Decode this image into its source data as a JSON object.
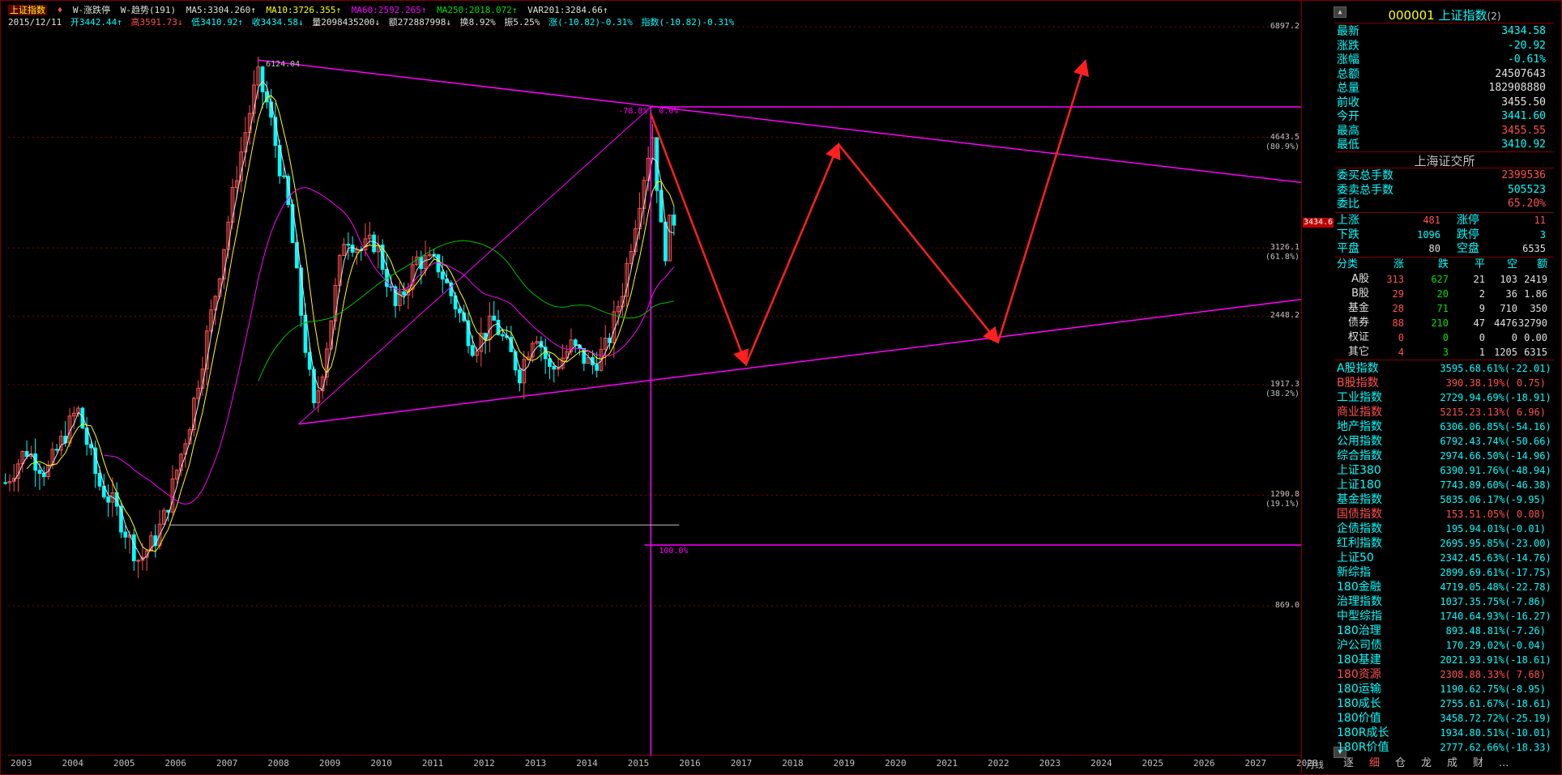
{
  "header": {
    "symbol": "上证指数",
    "arrow": "♦",
    "formula1": "W-涨跌停",
    "formula2": "W-趋势(191)",
    "ma5": "MA5:3304.260↑",
    "ma10": "MA10:3726.355↑",
    "ma60": "MA60:2592.265↑",
    "ma250": "MA250:2018.072↑",
    "var": "VAR201:3284.66↑"
  },
  "bar_info": {
    "date": "2015/12/11",
    "open": "开3442.44↑",
    "high": "高3591.73↓",
    "low": "低3410.92↑",
    "close": "收3434.58↓",
    "volume": "量2098435200↓",
    "amount": "额272887998↓",
    "turnover": "换8.92%",
    "amplitude": "振5.25%",
    "change": "涨(-10.82)-0.31%",
    "index": "指数(-10.82)-0.31%"
  },
  "y_axis": [
    {
      "label": "6897.2",
      "pct": ""
    },
    {
      "label": "4643.5",
      "pct": "(80.9%)"
    },
    {
      "label": "3126.1",
      "pct": "(61.8%)"
    },
    {
      "label": "2448.2",
      "pct": ""
    },
    {
      "label": "1917.3",
      "pct": "(38.2%)"
    },
    {
      "label": "1290.8",
      "pct": "(19.1%)"
    },
    {
      "label": "869.0",
      "pct": ""
    }
  ],
  "current_price_tag": "3434.6",
  "annotations": {
    "peak_2007": "6124.04",
    "fib_low": "-78.8%",
    "fib_high": "0.0%",
    "fib_100": "100.0%"
  },
  "x_axis": [
    "2003",
    "2004",
    "2005",
    "2006",
    "2007",
    "2008",
    "2009",
    "2010",
    "2011",
    "2012",
    "2013",
    "2014",
    "2015",
    "2016",
    "2017",
    "2018",
    "2019",
    "2020",
    "2021",
    "2022",
    "2023",
    "2024",
    "2025",
    "2026",
    "2027",
    "2028"
  ],
  "period_label": "月线",
  "panel": {
    "code": "000001",
    "name": "上证指数",
    "num": "(2)",
    "quotes": [
      {
        "k": "最新",
        "v": "3434.58",
        "color": "#00ffff"
      },
      {
        "k": "涨跌",
        "v": "-20.92",
        "color": "#00ffff"
      },
      {
        "k": "涨幅",
        "v": "-0.61%",
        "color": "#00ffff"
      },
      {
        "k": "总额",
        "v": "24507643",
        "color": "#e0e0e0"
      },
      {
        "k": "总量",
        "v": "182908880",
        "color": "#e0e0e0"
      },
      {
        "k": "前收",
        "v": "3455.50",
        "color": "#e0e0e0"
      },
      {
        "k": "今开",
        "v": "3441.60",
        "color": "#00ffff"
      },
      {
        "k": "最高",
        "v": "3455.55",
        "color": "#ff5050"
      },
      {
        "k": "最低",
        "v": "3410.92",
        "color": "#00ffff"
      }
    ],
    "exchange": "上海证交所",
    "orders": [
      {
        "k": "委买总手数",
        "v": "2399536",
        "color": "#ff5050"
      },
      {
        "k": "委卖总手数",
        "v": "505523",
        "color": "#00ffff"
      },
      {
        "k": "委比",
        "v": "65.20%",
        "color": "#ff5050"
      }
    ],
    "breadth": [
      {
        "k1": "上涨",
        "v1": "481",
        "c1": "#ff5050",
        "k2": "涨停",
        "v2": "11",
        "c2": "#ff5050"
      },
      {
        "k1": "下跌",
        "v1": "1096",
        "c1": "#00ffff",
        "k2": "跌停",
        "v2": "3",
        "c2": "#00ffff"
      },
      {
        "k1": "平盘",
        "v1": "80",
        "c1": "#e0e0e0",
        "k2": "空盘",
        "v2": "6535",
        "c2": "#e0e0e0"
      }
    ],
    "cat_headers": [
      "分类",
      "涨",
      "跌",
      "平",
      "空",
      "额"
    ],
    "categories": [
      {
        "name": "A股",
        "up": "313",
        "down": "627",
        "flat": "21",
        "empty": "103",
        "amt": "2419"
      },
      {
        "name": "B股",
        "up": "29",
        "down": "20",
        "flat": "2",
        "empty": "36",
        "amt": "1.86"
      },
      {
        "name": "基金",
        "up": "28",
        "down": "71",
        "flat": "9",
        "empty": "710",
        "amt": "350"
      },
      {
        "name": "债券",
        "up": "88",
        "down": "210",
        "flat": "47",
        "empty": "4476",
        "amt": "32790"
      },
      {
        "name": "权证",
        "up": "0",
        "down": "0",
        "flat": "0",
        "empty": "0",
        "amt": "0.00"
      },
      {
        "name": "其它",
        "up": "4",
        "down": "3",
        "flat": "1",
        "empty": "1205",
        "amt": "6315"
      }
    ],
    "indices": [
      {
        "n": "A股指数",
        "p": "3595.68",
        "c": ".61%(-22.01)",
        "color": "#00ffff"
      },
      {
        "n": "B股指数",
        "p": "390.38",
        "c": ".19%( 0.75)",
        "color": "#ff5050"
      },
      {
        "n": "工业指数",
        "p": "2729.94",
        "c": ".69%(-18.91)",
        "color": "#00ffff"
      },
      {
        "n": "商业指数",
        "p": "5215.23",
        "c": ".13%( 6.96)",
        "color": "#ff5050"
      },
      {
        "n": "地产指数",
        "p": "6306.06",
        "c": ".85%(-54.16)",
        "color": "#00ffff"
      },
      {
        "n": "公用指数",
        "p": "6792.43",
        "c": ".74%(-50.66)",
        "color": "#00ffff"
      },
      {
        "n": "综合指数",
        "p": "2974.66",
        "c": ".50%(-14.96)",
        "color": "#00ffff"
      },
      {
        "n": "上证380",
        "p": "6390.91",
        "c": ".76%(-48.94)",
        "color": "#00ffff"
      },
      {
        "n": "上证180",
        "p": "7743.89",
        "c": ".60%(-46.38)",
        "color": "#00ffff"
      },
      {
        "n": "基金指数",
        "p": "5835.06",
        "c": ".17%(-9.95)",
        "color": "#00ffff"
      },
      {
        "n": "国债指数",
        "p": "153.51",
        "c": ".05%( 0.08)",
        "color": "#ff5050"
      },
      {
        "n": "企债指数",
        "p": "195.94",
        "c": ".01%(-0.01)",
        "color": "#00ffff"
      },
      {
        "n": "红利指数",
        "p": "2695.95",
        "c": ".85%(-23.00)",
        "color": "#00ffff"
      },
      {
        "n": "上证50",
        "p": "2342.45",
        "c": ".63%(-14.76)",
        "color": "#00ffff"
      },
      {
        "n": "新综指",
        "p": "2899.69",
        "c": ".61%(-17.75)",
        "color": "#00ffff"
      },
      {
        "n": "180金融",
        "p": "4719.05",
        "c": ".48%(-22.78)",
        "color": "#00ffff"
      },
      {
        "n": "治理指数",
        "p": "1037.35",
        "c": ".75%(-7.86)",
        "color": "#00ffff"
      },
      {
        "n": "中型综指",
        "p": "1740.64",
        "c": ".93%(-16.27)",
        "color": "#00ffff"
      },
      {
        "n": "180治理",
        "p": "893.48",
        "c": ".81%(-7.26)",
        "color": "#00ffff"
      },
      {
        "n": "沪公司债",
        "p": "170.29",
        "c": ".02%(-0.04)",
        "color": "#00ffff"
      },
      {
        "n": "180基建",
        "p": "2021.93",
        "c": ".91%(-18.61)",
        "color": "#00ffff"
      },
      {
        "n": "180资源",
        "p": "2308.88",
        "c": ".33%( 7.68)",
        "color": "#ff5050"
      },
      {
        "n": "180运输",
        "p": "1190.62",
        "c": ".75%(-8.95)",
        "color": "#00ffff"
      },
      {
        "n": "180成长",
        "p": "2755.61",
        "c": ".67%(-18.61)",
        "color": "#00ffff"
      },
      {
        "n": "180价值",
        "p": "3458.72",
        "c": ".72%(-25.19)",
        "color": "#00ffff"
      },
      {
        "n": "180R成长",
        "p": "1934.80",
        "c": ".51%(-10.01)",
        "color": "#00ffff"
      },
      {
        "n": "180R价值",
        "p": "2777.62",
        "c": ".66%(-18.33)",
        "color": "#00ffff"
      }
    ],
    "tabs": [
      "逐",
      "细",
      "仓",
      "龙",
      "成",
      "财",
      "..."
    ]
  },
  "colors": {
    "up": "#ff5050",
    "down": "#00ffff",
    "trendline": "#ff00ff",
    "arrow": "#ff2020"
  }
}
